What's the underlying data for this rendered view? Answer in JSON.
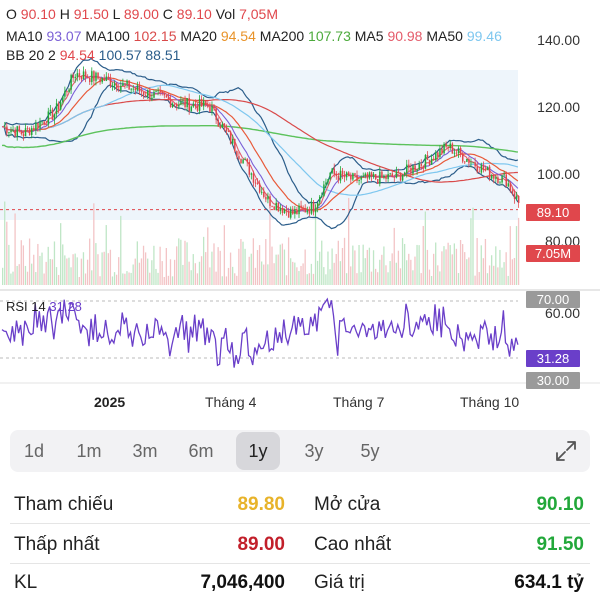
{
  "ohlc": {
    "o_label": "O",
    "o_value": "90.10",
    "h_label": "H",
    "h_value": "91.50",
    "l_label": "L",
    "l_value": "89.00",
    "c_label": "C",
    "c_value": "89.10",
    "vol_label": "Vol",
    "vol_value": "7,05M"
  },
  "ma_line": {
    "ma10_label": "MA10",
    "ma10_value": "93.07",
    "ma100_label": "MA100",
    "ma100_value": "102.15",
    "ma20_label": "MA20",
    "ma20_value": "94.54",
    "ma200_label": "MA200",
    "ma200_value": "107.73",
    "ma5_label": "MA5",
    "ma5_value": "90.98",
    "ma50_label": "MA50",
    "ma50_value": "99.46"
  },
  "bb_line": {
    "label": "BB 20 2",
    "mid": "94.54",
    "upper": "100.57",
    "lower": "88.51"
  },
  "rsi": {
    "label": "RSI 14",
    "value": "31.28",
    "upper_tag": "70.00",
    "lower_tag": "30.00",
    "level_60": "60.00"
  },
  "price_axis": [
    "140.00",
    "120.00",
    "100.00",
    "80.00"
  ],
  "current_price_tag": "89.10",
  "volume_tag": "7.05M",
  "x_axis": [
    "2025",
    "Tháng 4",
    "Tháng 7",
    "Tháng 10"
  ],
  "periods": [
    "1d",
    "1m",
    "3m",
    "6m",
    "1y",
    "3y",
    "5y"
  ],
  "active_period": "1y",
  "expand_icon": "expand-diagonal-icon",
  "stats": {
    "ref_label": "Tham chiếu",
    "ref_value": "89.80",
    "open_label": "Mở cửa",
    "open_value": "90.10",
    "low_label": "Thấp nhất",
    "low_value": "89.00",
    "high_label": "Cao nhất",
    "high_value": "91.50",
    "vol_label": "KL",
    "vol_value": "7,046,400",
    "val_label": "Giá trị",
    "val_value": "634.1 tỷ"
  },
  "colors": {
    "up": "#22a83a",
    "down": "#e0474c",
    "ref": "#e8b32a",
    "ma5": "#e45b6a",
    "ma10": "#7b5fd6",
    "ma20": "#e85a3a",
    "ma50": "#7ec7ef",
    "ma100": "#d94a4a",
    "ma200": "#5cc25c",
    "bb": "#2b5d8a",
    "rsi": "#6a3fc9"
  }
}
